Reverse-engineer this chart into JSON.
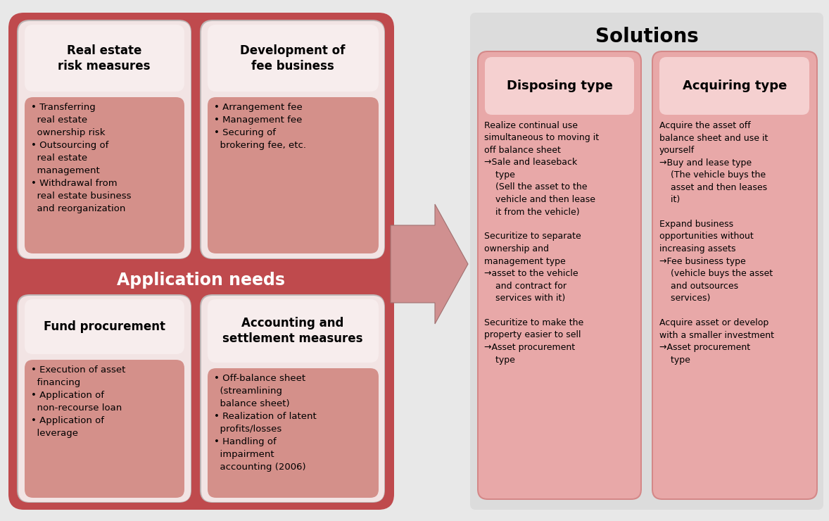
{
  "fig_width": 11.78,
  "fig_height": 7.4,
  "dpi": 100,
  "bg_color": "#e8e8e8",
  "left_bg_color": "#bf4a4d",
  "card_shadow_color": "#c0b8b8",
  "card_bg_color": "#f0e0e0",
  "card_content_color": "#d4908a",
  "card_header_color": "#f7eded",
  "sol_panel_bg": "#e0dede",
  "sol_card_bg": "#d48888",
  "sol_card_content": "#e8a8a8",
  "sol_header_color": "#f5d0d0",
  "arrow_color": "#d09090",
  "arrow_edge": "#a07070",
  "app_needs_label": "Application needs",
  "solutions_title": "Solutions",
  "top_left_title": "Real estate\nrisk measures",
  "top_left_items": "• Transferring\n  real estate\n  ownership risk\n• Outsourcing of\n  real estate\n  management\n• Withdrawal from\n  real estate business\n  and reorganization",
  "top_right_title": "Development of\nfee business",
  "top_right_items": "• Arrangement fee\n• Management fee\n• Securing of\n  brokering fee, etc.",
  "bot_left_title": "Fund procurement",
  "bot_left_items": "• Execution of asset\n  financing\n• Application of\n  non-recourse loan\n• Application of\n  leverage",
  "bot_right_title": "Accounting and\nsettlement measures",
  "bot_right_items": "• Off-balance sheet\n  (streamlining\n  balance sheet)\n• Realization of latent\n  profits/losses\n• Handling of\n  impairment\n  accounting (2006)",
  "disposing_title": "Disposing type",
  "disposing_text": "Realize continual use\nsimultaneous to moving it\noff balance sheet\n→Sale and leaseback\n    type\n    (Sell the asset to the\n    vehicle and then lease\n    it from the vehicle)\n\nSecuritize to separate\nownership and\nmanagement type\n→asset to the vehicle\n    and contract for\n    services with it)\n\nSecuritize to make the\nproperty easier to sell\n→Asset procurement\n    type",
  "acquiring_title": "Acquiring type",
  "acquiring_text": "Acquire the asset off\nbalance sheet and use it\nyourself\n→Buy and lease type\n    (The vehicle buys the\n    asset and then leases\n    it)\n\nExpand business\nopportunities without\nincreasing assets\n→Fee business type\n    (vehicle buys the asset\n    and outsources\n    services)\n\nAcquire asset or develop\nwith a smaller investment\n→Asset procurement\n    type"
}
